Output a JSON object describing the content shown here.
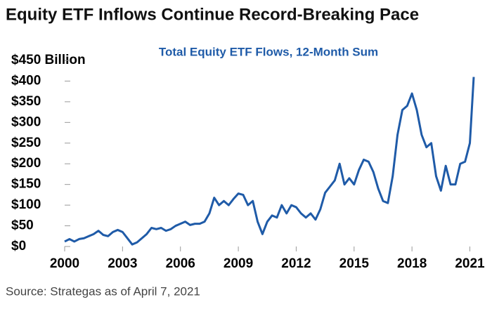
{
  "chart_data": {
    "type": "line",
    "title": "Equity ETF Inflows Continue Record-Breaking Pace",
    "subtitle": "Total Equity ETF Flows, 12-Month Sum",
    "source": "Source: Strategas as of April 7, 2021",
    "color": "#1f5ba8",
    "x": [
      2000,
      2000.25,
      2000.5,
      2000.75,
      2001,
      2001.25,
      2001.5,
      2001.75,
      2002,
      2002.25,
      2002.5,
      2002.75,
      2003,
      2003.25,
      2003.5,
      2003.75,
      2004,
      2004.25,
      2004.5,
      2004.75,
      2005,
      2005.25,
      2005.5,
      2005.75,
      2006,
      2006.25,
      2006.5,
      2006.75,
      2007,
      2007.25,
      2007.5,
      2007.75,
      2008,
      2008.25,
      2008.5,
      2008.75,
      2009,
      2009.25,
      2009.5,
      2009.75,
      2010,
      2010.25,
      2010.5,
      2010.75,
      2011,
      2011.25,
      2011.5,
      2011.75,
      2012,
      2012.25,
      2012.5,
      2012.75,
      2013,
      2013.25,
      2013.5,
      2013.75,
      2014,
      2014.25,
      2014.5,
      2014.75,
      2015,
      2015.25,
      2015.5,
      2015.75,
      2016,
      2016.25,
      2016.5,
      2016.75,
      2017,
      2017.25,
      2017.5,
      2017.75,
      2018,
      2018.25,
      2018.5,
      2018.75,
      2019,
      2019.25,
      2019.5,
      2019.75,
      2020,
      2020.25,
      2020.5,
      2020.75,
      2021,
      2021.2
    ],
    "values": [
      12,
      18,
      12,
      18,
      20,
      25,
      30,
      38,
      28,
      25,
      35,
      40,
      35,
      20,
      5,
      10,
      20,
      30,
      45,
      42,
      45,
      38,
      42,
      50,
      55,
      60,
      52,
      55,
      55,
      60,
      80,
      118,
      100,
      110,
      100,
      115,
      128,
      125,
      100,
      110,
      60,
      30,
      60,
      75,
      70,
      100,
      80,
      100,
      95,
      80,
      70,
      80,
      65,
      90,
      130,
      145,
      160,
      200,
      150,
      165,
      150,
      185,
      210,
      205,
      180,
      140,
      110,
      105,
      170,
      270,
      330,
      340,
      370,
      330,
      270,
      240,
      250,
      170,
      135,
      195,
      150,
      150,
      200,
      205,
      250,
      410
    ],
    "xlim": [
      2000,
      2021.2
    ],
    "ylim": [
      0,
      450
    ],
    "xticks": [
      2000,
      2003,
      2006,
      2009,
      2012,
      2015,
      2018,
      2021
    ],
    "yticks": [
      {
        "value": 0,
        "label": "$0"
      },
      {
        "value": 50,
        "label": "$50"
      },
      {
        "value": 100,
        "label": "$100"
      },
      {
        "value": 150,
        "label": "$150"
      },
      {
        "value": 200,
        "label": "$200"
      },
      {
        "value": 250,
        "label": "$250"
      },
      {
        "value": 300,
        "label": "$300"
      },
      {
        "value": 350,
        "label": "$350"
      },
      {
        "value": 400,
        "label": "$400"
      },
      {
        "value": 450,
        "label": "$450 Billion"
      }
    ]
  }
}
